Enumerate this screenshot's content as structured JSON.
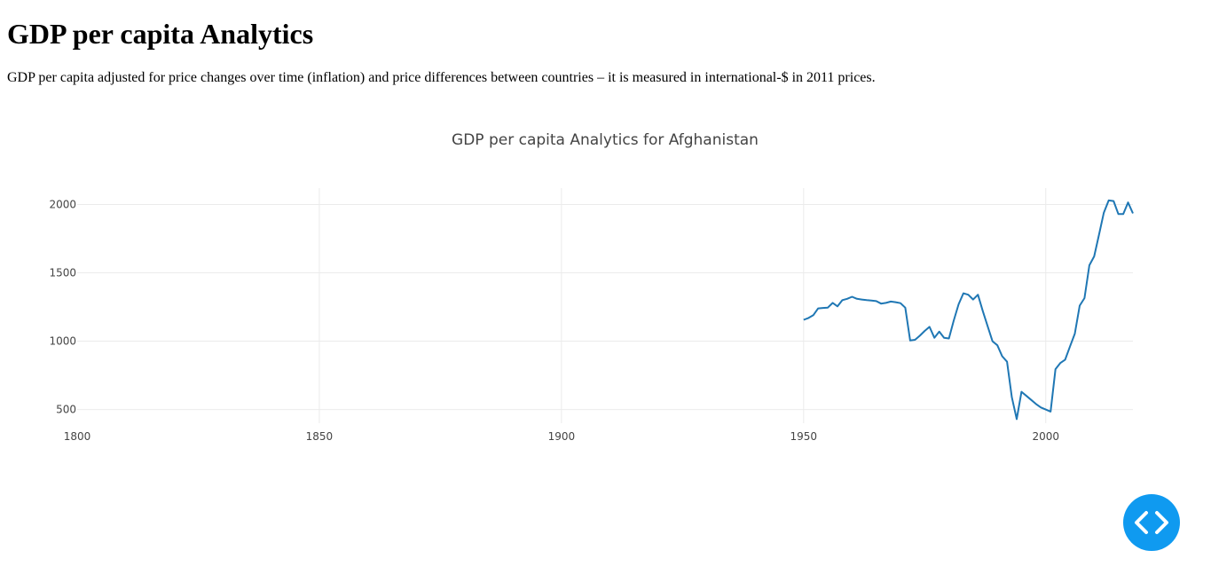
{
  "page": {
    "heading": "GDP per capita Analytics",
    "description": "GDP per capita adjusted for price changes over time (inflation) and price differences between countries – it is measured in international-$ in 2011 prices."
  },
  "fab": {
    "icon": "code-icon",
    "color": "#0f9af0"
  },
  "chart_data": {
    "type": "line",
    "title": "GDP per capita Analytics for Afghanistan",
    "xlabel": "",
    "ylabel": "",
    "xlim": [
      1800,
      2018
    ],
    "ylim": [
      400,
      2120
    ],
    "x_ticks": [
      1800,
      1850,
      1900,
      1950,
      2000
    ],
    "y_ticks": [
      500,
      1000,
      1500,
      2000
    ],
    "grid": true,
    "line_color": "#1f77b4",
    "series": [
      {
        "x": [
          1950,
          1951,
          1952,
          1953,
          1954,
          1955,
          1956,
          1957,
          1958,
          1959,
          1960,
          1961,
          1962,
          1963,
          1964,
          1965,
          1966,
          1967,
          1968,
          1969,
          1970,
          1971,
          1972,
          1973,
          1974,
          1975,
          1976,
          1977,
          1978,
          1979,
          1980,
          1981,
          1982,
          1983,
          1984,
          1985,
          1986,
          1987,
          1988,
          1989,
          1990,
          1991,
          1992,
          1993,
          1994,
          1995,
          1996,
          1997,
          1998,
          1999,
          2000,
          2001,
          2002,
          2003,
          2004,
          2005,
          2006,
          2007,
          2008,
          2009,
          2010,
          2011,
          2012,
          2013,
          2014,
          2015,
          2016,
          2017,
          2018
        ],
        "y": [
          1156,
          1170,
          1190,
          1240,
          1243,
          1246,
          1280,
          1255,
          1300,
          1310,
          1325,
          1310,
          1305,
          1300,
          1297,
          1293,
          1275,
          1280,
          1290,
          1285,
          1278,
          1245,
          1005,
          1010,
          1040,
          1075,
          1105,
          1025,
          1070,
          1025,
          1020,
          1150,
          1270,
          1350,
          1340,
          1305,
          1340,
          1220,
          1110,
          1000,
          970,
          890,
          850,
          590,
          430,
          630,
          600,
          570,
          540,
          515,
          500,
          485,
          795,
          840,
          865,
          960,
          1055,
          1260,
          1315,
          1555,
          1620,
          1780,
          1940,
          2030,
          2025,
          1930,
          1930,
          2015,
          1935
        ]
      }
    ]
  }
}
